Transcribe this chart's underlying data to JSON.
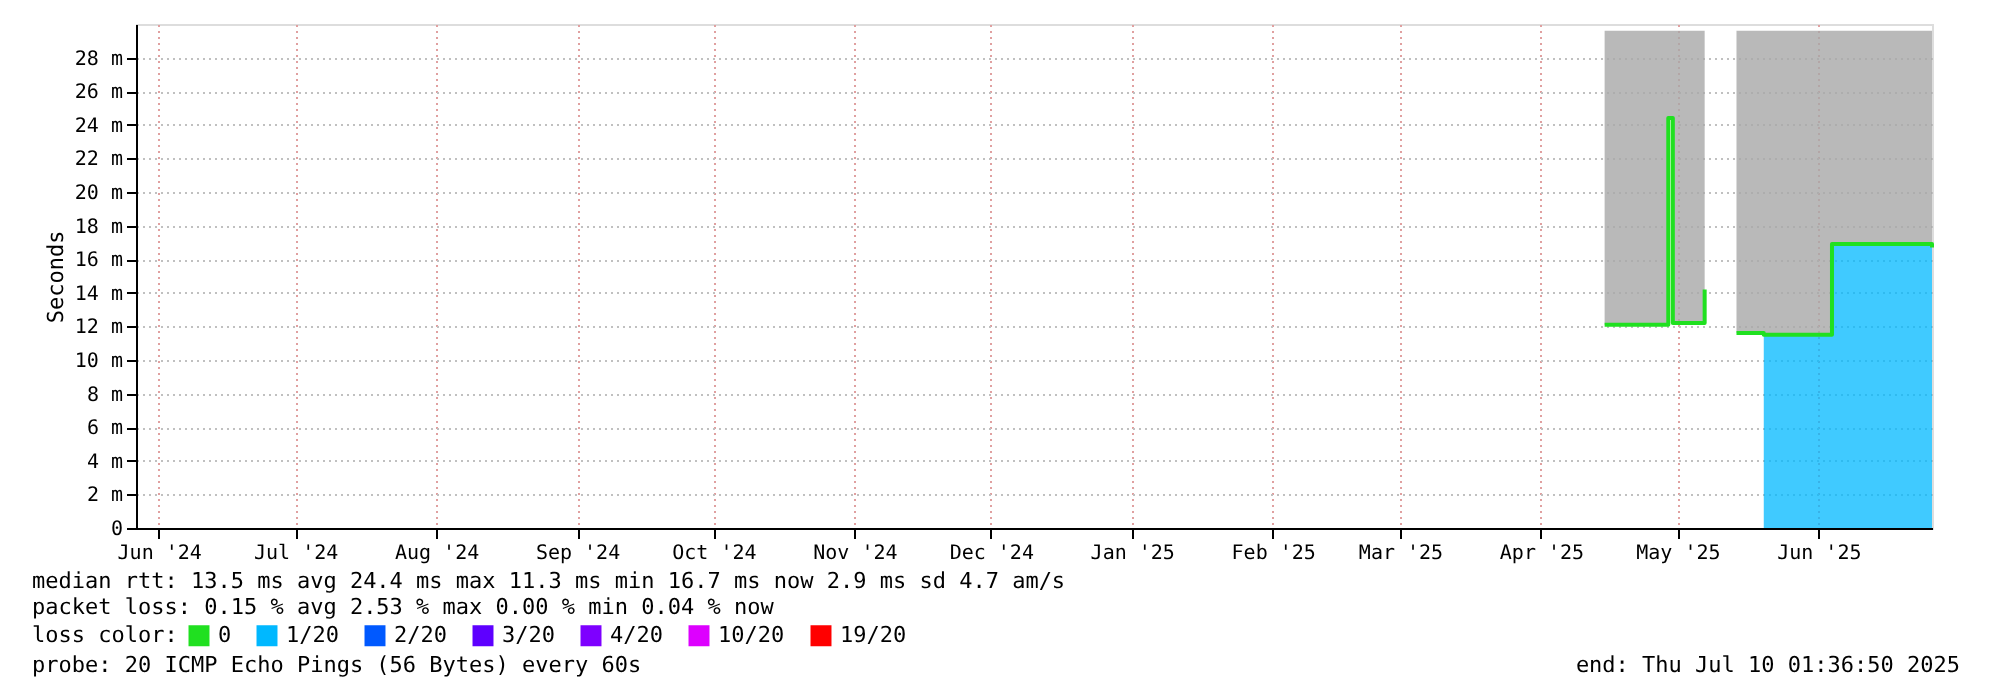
{
  "chart_data": {
    "type": "step",
    "ylabel": "Seconds",
    "x": [
      "2025-04-29",
      "2025-05-13",
      "2025-05-14",
      "2025-05-21",
      "2025-05-26",
      "2025-05-28",
      "2025-06-03",
      "2025-06-18",
      "2025-07-10"
    ],
    "series": [
      {
        "name": "0",
        "color": "#20e020",
        "values": [
          12.1,
          24.4,
          12.2,
          14.2,
          null,
          11.6,
          11.5,
          16.9,
          16.7
        ],
        "lower": [
          12.1,
          24.4,
          12.2,
          14.2,
          null,
          11.6,
          11.5,
          16.9,
          16.7
        ],
        "upper": [
          29.6,
          29.6,
          29.6,
          29.6,
          null,
          29.6,
          29.6,
          29.6,
          29.6
        ]
      },
      {
        "name": "1/20",
        "color": "#00b8ff",
        "type": "area",
        "x": [
          "2025-06-03",
          "2025-06-18",
          "2025-07-10"
        ],
        "values": [
          11.5,
          16.9,
          16.7
        ]
      },
      {
        "name": "2/20",
        "color": "#0059ff",
        "type": "area",
        "values": [
          null,
          null,
          null,
          null,
          null,
          null,
          null,
          null,
          null
        ]
      },
      {
        "name": "3/20",
        "color": "#5e00ff",
        "type": "area",
        "values": [
          null,
          null,
          null,
          null,
          null,
          null,
          null,
          null,
          null
        ]
      },
      {
        "name": "4/20",
        "color": "#7e00ff",
        "type": "area",
        "values": [
          null,
          null,
          null,
          null,
          null,
          null,
          null,
          null,
          null
        ]
      },
      {
        "name": "10/20",
        "color": "#dd00ff",
        "type": "area",
        "values": [
          null,
          null,
          null,
          null,
          null,
          null,
          null,
          null,
          null
        ]
      },
      {
        "name": "19/20",
        "color": "#ff0000",
        "type": "area",
        "values": [
          null,
          null,
          null,
          null,
          null,
          null,
          null,
          null,
          null
        ]
      }
    ],
    "legend_title": "loss color:",
    "legend": "bottom left",
    "xlim": [
      "2024-06-10",
      "2025-07-10"
    ],
    "xticks": [
      {
        "value": "2024-06-15",
        "label": "Jun '24"
      },
      {
        "value": "2024-07-15",
        "label": "Jul '24"
      },
      {
        "value": "2024-08-15",
        "label": "Aug '24"
      },
      {
        "value": "2024-09-15",
        "label": "Sep '24"
      },
      {
        "value": "2024-10-15",
        "label": "Oct '24"
      },
      {
        "value": "2024-11-15",
        "label": "Nov '24"
      },
      {
        "value": "2024-12-15",
        "label": "Dec '24"
      },
      {
        "value": "2025-01-15",
        "label": "Jan '25"
      },
      {
        "value": "2025-02-15",
        "label": "Feb '25"
      },
      {
        "value": "2025-03-15",
        "label": "Mar '25"
      },
      {
        "value": "2025-04-15",
        "label": "Apr '25"
      },
      {
        "value": "2025-05-15",
        "label": "May '25"
      },
      {
        "value": "2025-06-15",
        "label": "Jun '25"
      }
    ],
    "ylim": [
      0,
      30
    ],
    "yticks": [
      0,
      {
        "value": 2,
        "label": "2 m"
      },
      {
        "value": 4,
        "label": "4 m"
      },
      {
        "value": 6,
        "label": "6 m"
      },
      {
        "value": 8,
        "label": "8 m"
      },
      {
        "value": 10,
        "label": "10 m"
      },
      {
        "value": 12,
        "label": "12 m"
      },
      {
        "value": 14,
        "label": "14 m"
      },
      {
        "value": 16,
        "label": "16 m"
      },
      {
        "value": 18,
        "label": "18 m"
      },
      {
        "value": 20,
        "label": "20 m"
      },
      {
        "value": 22,
        "label": "22 m"
      },
      {
        "value": 24,
        "label": "24 m"
      },
      {
        "value": 26,
        "label": "26 m"
      },
      {
        "value": 28,
        "label": "28 m"
      }
    ],
    "grid": true,
    "annotations": [
      "median rtt:  13.5 ms avg  24.4 ms max  11.3 ms min  16.7 ms now  2.9 ms sd  4.7   am/s",
      "packet loss: 0.15 % avg  2.53 % max  0.00 % min  0.04 % now",
      "probe:       20 ICMP Echo Pings (56 Bytes) every 60s",
      "end: Thu Jul 10 01:36:50 2025"
    ]
  }
}
